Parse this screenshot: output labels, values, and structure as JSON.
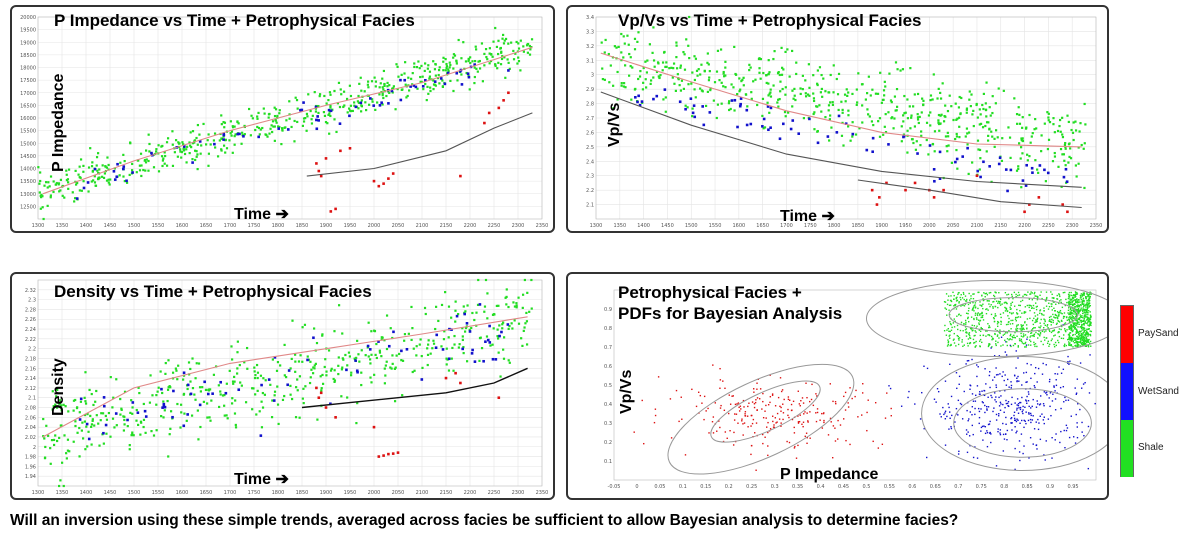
{
  "caption": "Will an inversion using these simple trends, averaged across facies be sufficient to allow  Bayesian analysis to determine facies?",
  "colors": {
    "shale": "#22dd22",
    "wetsand": "#1111cc",
    "paysand": "#dd1111",
    "trend_red": "#e08888",
    "trend_gray": "#555555",
    "trend_black": "#111111",
    "ellipse": "#999999"
  },
  "legend": {
    "items": [
      {
        "label": "PaySand",
        "color": "#ff0000"
      },
      {
        "label": "WetSand",
        "color": "#1010ff"
      },
      {
        "label": "Shale",
        "color": "#22e022"
      }
    ]
  },
  "chart_data": [
    {
      "type": "scatter",
      "title": "P Impedance vs Time + Petrophysical Facies",
      "ylabel": "P Impedance",
      "xlabel": "Time ➔",
      "xlim": [
        1300,
        2350
      ],
      "ylim": [
        12000,
        20000
      ],
      "x_ticks": [
        "1300",
        "1350",
        "1400",
        "1450",
        "1500",
        "1550",
        "1600",
        "1650",
        "1700",
        "1750",
        "1800",
        "1850",
        "1900",
        "1950",
        "2000",
        "2050",
        "2100",
        "2150",
        "2200",
        "2250",
        "2300",
        "2350"
      ],
      "y_ticks": [
        "12500",
        "13000",
        "13500",
        "14000",
        "14500",
        "15000",
        "15500",
        "16000",
        "16500",
        "17000",
        "17500",
        "18000",
        "18500",
        "19000",
        "19500",
        "20000"
      ],
      "series": [
        {
          "name": "Shale",
          "x": [
            1300,
            2330
          ],
          "trend_start": 13000,
          "trend_end": 18900,
          "spread": 700
        },
        {
          "name": "WetSand",
          "x": [
            1380,
            2300
          ],
          "trend_start": 13300,
          "trend_end": 18400,
          "spread": 500
        },
        {
          "name": "PaySand",
          "points": [
            [
              1880,
              14200
            ],
            [
              1885,
              13900
            ],
            [
              1890,
              13700
            ],
            [
              1900,
              14400
            ],
            [
              1910,
              12300
            ],
            [
              1920,
              12400
            ],
            [
              1930,
              14700
            ],
            [
              1950,
              14800
            ],
            [
              2000,
              13500
            ],
            [
              2010,
              13300
            ],
            [
              2020,
              13400
            ],
            [
              2030,
              13600
            ],
            [
              2040,
              13800
            ],
            [
              2180,
              13700
            ],
            [
              2230,
              15800
            ],
            [
              2240,
              16200
            ],
            [
              2260,
              16400
            ],
            [
              2270,
              16700
            ],
            [
              2280,
              17000
            ]
          ]
        }
      ],
      "trends": [
        {
          "name": "average",
          "color_key": "trend_red",
          "points": [
            [
              1310,
              13000
            ],
            [
              1500,
              14300
            ],
            [
              1700,
              15500
            ],
            [
              1900,
              16500
            ],
            [
              2100,
              17400
            ],
            [
              2330,
              18800
            ]
          ]
        },
        {
          "name": "sand",
          "color_key": "trend_gray",
          "points": [
            [
              1860,
              13700
            ],
            [
              2000,
              14000
            ],
            [
              2150,
              14700
            ],
            [
              2250,
              15600
            ],
            [
              2330,
              16200
            ]
          ]
        }
      ]
    },
    {
      "type": "scatter",
      "title": "Vp/Vs vs Time + Petrophysical Facies",
      "ylabel": "Vp/Vs",
      "xlabel": "Time ➔",
      "xlim": [
        1300,
        2350
      ],
      "ylim": [
        2.0,
        3.4
      ],
      "x_ticks": [
        "1300",
        "1350",
        "1400",
        "1450",
        "1500",
        "1550",
        "1600",
        "1650",
        "1700",
        "1750",
        "1800",
        "1850",
        "1900",
        "1950",
        "2000",
        "2050",
        "2100",
        "2150",
        "2200",
        "2250",
        "2300",
        "2350"
      ],
      "y_ticks": [
        "2.1",
        "2.2",
        "2.3",
        "2.4",
        "2.5",
        "2.6",
        "2.7",
        "2.8",
        "2.9",
        "3",
        "3.1",
        "3.2",
        "3.3",
        "3.4"
      ],
      "series": [
        {
          "name": "Shale",
          "x": [
            1310,
            2330
          ],
          "trend_start": 3.1,
          "trend_end": 2.5,
          "spread": 0.25
        },
        {
          "name": "WetSand",
          "x": [
            1380,
            2290
          ],
          "trend_start": 2.85,
          "trend_end": 2.25,
          "spread": 0.12
        },
        {
          "name": "PaySand",
          "points": [
            [
              1880,
              2.2
            ],
            [
              1890,
              2.1
            ],
            [
              1895,
              2.15
            ],
            [
              1910,
              2.25
            ],
            [
              1950,
              2.2
            ],
            [
              1970,
              2.25
            ],
            [
              2000,
              2.2
            ],
            [
              2010,
              2.15
            ],
            [
              2030,
              2.2
            ],
            [
              2100,
              2.3
            ],
            [
              2200,
              2.05
            ],
            [
              2210,
              2.1
            ],
            [
              2230,
              2.15
            ],
            [
              2280,
              2.1
            ],
            [
              2290,
              2.05
            ]
          ]
        }
      ],
      "trends": [
        {
          "name": "average",
          "color_key": "trend_red",
          "points": [
            [
              1310,
              3.15
            ],
            [
              1500,
              2.95
            ],
            [
              1700,
              2.75
            ],
            [
              1900,
              2.6
            ],
            [
              2100,
              2.52
            ],
            [
              2320,
              2.5
            ]
          ]
        },
        {
          "name": "wet",
          "color_key": "trend_gray",
          "points": [
            [
              1310,
              2.88
            ],
            [
              1500,
              2.65
            ],
            [
              1700,
              2.45
            ],
            [
              1900,
              2.33
            ],
            [
              2100,
              2.26
            ],
            [
              2320,
              2.22
            ]
          ]
        },
        {
          "name": "pay",
          "color_key": "trend_gray",
          "points": [
            [
              1850,
              2.27
            ],
            [
              2000,
              2.2
            ],
            [
              2150,
              2.12
            ],
            [
              2320,
              2.08
            ]
          ]
        }
      ]
    },
    {
      "type": "scatter",
      "title": "Density vs Time + Petrophysical Facies",
      "ylabel": "Density",
      "xlabel": "Time ➔",
      "xlim": [
        1300,
        2350
      ],
      "ylim": [
        1.92,
        2.34
      ],
      "x_ticks": [
        "1300",
        "1350",
        "1400",
        "1450",
        "1500",
        "1550",
        "1600",
        "1650",
        "1700",
        "1750",
        "1800",
        "1850",
        "1900",
        "1950",
        "2000",
        "2050",
        "2100",
        "2150",
        "2200",
        "2250",
        "2300",
        "2350"
      ],
      "y_ticks": [
        "1.94",
        "1.96",
        "1.98",
        "2",
        "2.02",
        "2.04",
        "2.06",
        "2.08",
        "2.1",
        "2.12",
        "2.14",
        "2.16",
        "2.18",
        "2.2",
        "2.22",
        "2.24",
        "2.26",
        "2.28",
        "2.3",
        "2.32"
      ],
      "series": [
        {
          "name": "Shale",
          "x": [
            1310,
            2330
          ],
          "trend_start": 2.03,
          "trend_end": 2.26,
          "spread": 0.08
        },
        {
          "name": "WetSand",
          "x": [
            1380,
            2290
          ],
          "trend_start": 2.05,
          "trend_end": 2.22,
          "spread": 0.06
        },
        {
          "name": "PaySand",
          "points": [
            [
              1880,
              2.12
            ],
            [
              1885,
              2.1
            ],
            [
              1890,
              2.11
            ],
            [
              1900,
              2.08
            ],
            [
              1920,
              2.06
            ],
            [
              2000,
              2.04
            ],
            [
              2010,
              1.98
            ],
            [
              2020,
              1.982
            ],
            [
              2030,
              1.985
            ],
            [
              2040,
              1.986
            ],
            [
              2050,
              1.988
            ],
            [
              2150,
              2.14
            ],
            [
              2170,
              2.15
            ],
            [
              2180,
              2.13
            ],
            [
              2260,
              2.1
            ]
          ]
        }
      ],
      "trends": [
        {
          "name": "average",
          "color_key": "trend_red",
          "points": [
            [
              1310,
              2.02
            ],
            [
              1500,
              2.12
            ],
            [
              1700,
              2.17
            ],
            [
              1900,
              2.2
            ],
            [
              2100,
              2.23
            ],
            [
              2320,
              2.265
            ]
          ]
        },
        {
          "name": "sand",
          "color_key": "trend_black",
          "points": [
            [
              1850,
              2.08
            ],
            [
              1950,
              2.09
            ],
            [
              2050,
              2.1
            ],
            [
              2150,
              2.11
            ],
            [
              2250,
              2.13
            ],
            [
              2320,
              2.16
            ]
          ]
        }
      ]
    },
    {
      "type": "scatter",
      "title": "Petrophysical Facies +\nPDFs for Bayesian Analysis",
      "ylabel": "Vp/Vs",
      "xlabel": "P Impedance",
      "xlim": [
        -0.05,
        1.0
      ],
      "ylim": [
        0.0,
        1.0
      ],
      "x_ticks": [
        "-0.05",
        "0",
        "0.05",
        "0.1",
        "0.15",
        "0.2",
        "0.25",
        "0.3",
        "0.35",
        "0.4",
        "0.45",
        "0.5",
        "0.55",
        "0.6",
        "0.65",
        "0.7",
        "0.75",
        "0.8",
        "0.85",
        "0.9",
        "0.95"
      ],
      "y_ticks": [
        "0.1",
        "0.2",
        "0.3",
        "0.4",
        "0.5",
        "0.6",
        "0.7",
        "0.8",
        "0.9"
      ],
      "series": [
        {
          "name": "PaySand",
          "center": [
            0.3,
            0.35
          ],
          "spread": [
            0.2,
            0.15
          ]
        },
        {
          "name": "WetSand",
          "center": [
            0.82,
            0.38
          ],
          "spread": [
            0.15,
            0.22
          ]
        },
        {
          "name": "Shale",
          "center": [
            0.82,
            0.85
          ],
          "spread": [
            0.2,
            0.12
          ]
        }
      ],
      "ellipses": [
        {
          "center": [
            0.27,
            0.32
          ],
          "rx": 0.22,
          "ry": 0.2,
          "angle": -25
        },
        {
          "center": [
            0.28,
            0.36
          ],
          "rx": 0.13,
          "ry": 0.1,
          "angle": -25
        },
        {
          "center": [
            0.84,
            0.35
          ],
          "rx": 0.22,
          "ry": 0.3,
          "angle": 0
        },
        {
          "center": [
            0.84,
            0.3
          ],
          "rx": 0.15,
          "ry": 0.18,
          "angle": 0
        },
        {
          "center": [
            0.78,
            0.85
          ],
          "rx": 0.28,
          "ry": 0.2,
          "angle": 0
        },
        {
          "center": [
            0.82,
            0.87
          ],
          "rx": 0.14,
          "ry": 0.09,
          "angle": 0
        }
      ]
    }
  ]
}
